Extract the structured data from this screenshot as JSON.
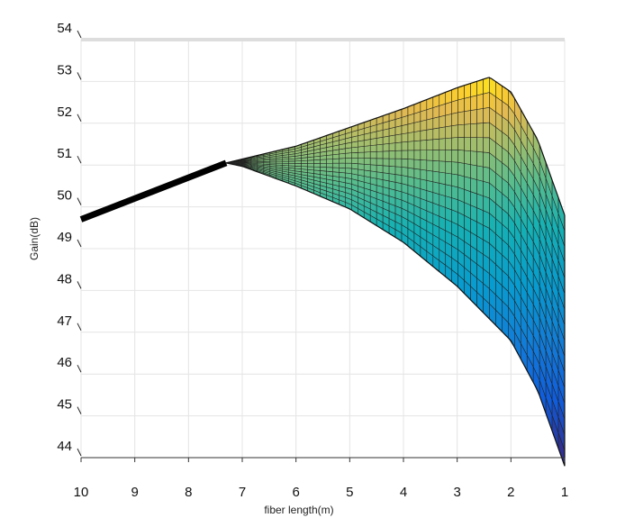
{
  "chart_data": {
    "type": "surface",
    "xlabel": "fiber length(m)",
    "ylabel": "Gain(dB)",
    "x_ticks": [
      10,
      9,
      8,
      7,
      6,
      5,
      4,
      3,
      2,
      1
    ],
    "y_ticks": [
      44,
      45,
      46,
      47,
      48,
      49,
      50,
      51,
      52,
      53,
      54
    ],
    "xlim": [
      10,
      1
    ],
    "ylim": [
      44,
      54
    ],
    "grid": true,
    "colormap": "parula",
    "ridge_line": {
      "x": [
        10,
        7.3,
        5,
        2.4
      ],
      "y": [
        49.7,
        51.05,
        51.9,
        53.1
      ]
    },
    "surface_top_edge": {
      "x": [
        7.3,
        6,
        5,
        4,
        3,
        2.4,
        2,
        1.5,
        1
      ],
      "y": [
        51.05,
        51.45,
        51.9,
        52.35,
        52.85,
        53.1,
        52.75,
        51.6,
        49.8
      ]
    },
    "surface_bottom_edge": {
      "x": [
        7.3,
        7,
        6,
        5,
        4,
        3,
        2,
        1.5,
        1
      ],
      "y": [
        51.05,
        50.97,
        50.5,
        49.95,
        49.15,
        48.1,
        46.8,
        45.6,
        43.8
      ]
    }
  }
}
